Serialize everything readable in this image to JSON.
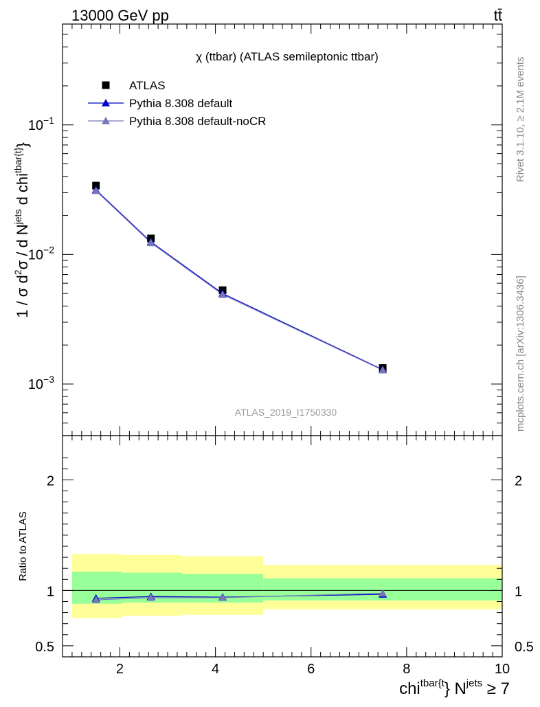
{
  "header": {
    "energy_label": "13000 GeV pp",
    "process_label": "tt̄"
  },
  "side_labels": {
    "rivet": "Rivet 3.1.10, ≥ 2.1M events",
    "mcplots": "mcplots.cern.ch [arXiv:1306.3436]"
  },
  "chart_data": [
    {
      "type": "line",
      "title": "χ (ttbar) (ATLAS semileptonic ttbar)",
      "watermark": "ATLAS_2019_I1750330",
      "ylabel": "1 / σ d²σ / d N^jets d chi^tbar{t}",
      "yscale": "log",
      "xlim": [
        0.8,
        10.0
      ],
      "ylim": [
        0.0004,
        0.6
      ],
      "x_ticks": [
        2,
        4,
        6,
        8,
        10
      ],
      "y_tick_labels": [
        {
          "value": 0.1,
          "base": "10",
          "exp": "−1"
        },
        {
          "value": 0.01,
          "base": "10",
          "exp": "−2"
        },
        {
          "value": 0.001,
          "base": "10",
          "exp": "−3"
        }
      ],
      "legend_position": "top-left",
      "series": [
        {
          "name": "ATLAS",
          "marker": "square",
          "color": "#000000",
          "x": [
            1.5,
            2.65,
            4.15,
            7.5
          ],
          "y": [
            0.034,
            0.0133,
            0.0053,
            0.00133
          ]
        },
        {
          "name": "Pythia 8.308 default",
          "marker": "triangle",
          "color": "#0000cc",
          "x": [
            1.5,
            2.65,
            4.15,
            7.5
          ],
          "y": [
            0.0315,
            0.0125,
            0.005,
            0.00129
          ]
        },
        {
          "name": "Pythia 8.308 default-noCR",
          "marker": "triangle",
          "color": "#7777bb",
          "x": [
            1.5,
            2.65,
            4.15,
            7.5
          ],
          "y": [
            0.031,
            0.0123,
            0.0049,
            0.00128
          ]
        }
      ]
    },
    {
      "type": "line",
      "ylabel": "Ratio to ATLAS",
      "xlabel": "chi^tbar{t} N^jets ≥ 7",
      "xlim": [
        0.8,
        10.0
      ],
      "ylim": [
        0.4,
        2.4
      ],
      "x_ticks": [
        2,
        4,
        6,
        8,
        10
      ],
      "y_ticks": [
        0.5,
        1,
        2
      ],
      "bins": [
        {
          "lo": 1.0,
          "hi": 2.05,
          "inner": [
            0.88,
            1.17
          ],
          "outer": [
            0.75,
            1.33
          ]
        },
        {
          "lo": 2.05,
          "hi": 3.3,
          "inner": [
            0.89,
            1.16
          ],
          "outer": [
            0.77,
            1.32
          ]
        },
        {
          "lo": 3.3,
          "hi": 5.0,
          "inner": [
            0.89,
            1.15
          ],
          "outer": [
            0.78,
            1.31
          ]
        },
        {
          "lo": 5.0,
          "hi": 10.0,
          "inner": [
            0.91,
            1.11
          ],
          "outer": [
            0.83,
            1.23
          ]
        }
      ],
      "series": [
        {
          "name": "Pythia 8.308 default",
          "color": "#0000cc",
          "x": [
            1.5,
            2.65,
            4.15,
            7.5
          ],
          "y": [
            0.93,
            0.945,
            0.94,
            0.965
          ]
        },
        {
          "name": "Pythia 8.308 default-noCR",
          "color": "#7777bb",
          "x": [
            1.5,
            2.65,
            4.15,
            7.5
          ],
          "y": [
            0.915,
            0.935,
            0.935,
            0.975
          ]
        }
      ]
    }
  ]
}
